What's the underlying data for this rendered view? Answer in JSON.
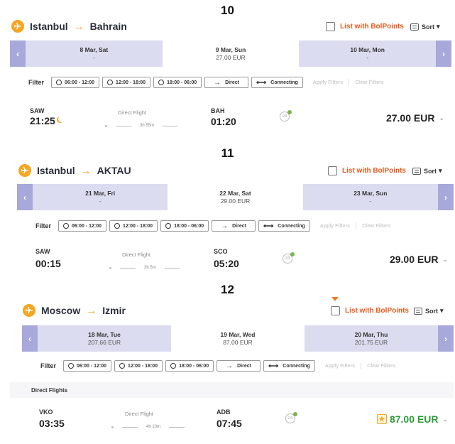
{
  "panels": [
    {
      "number": "10",
      "from": "Istanbul",
      "to": "Bahrain",
      "bolpoints_label": "List with BolPoints",
      "sort_label": "Sort",
      "dates": [
        {
          "date": "8 Mar, Sat",
          "price": "-"
        },
        {
          "date": "9 Mar, Sun",
          "price": "27.00 EUR"
        },
        {
          "date": "10 Mar, Mon",
          "price": "-"
        }
      ],
      "filter": {
        "label": "Filter",
        "t1": "06:00 - 12:00",
        "t2": "12:00 - 18:00",
        "t3": "18:00 - 06:00",
        "direct": "Direct",
        "connecting": "Connecting",
        "apply": "Apply Filters",
        "clear": "Clear Filters"
      },
      "flight": {
        "dep_code": "SAW",
        "dep_time": "21:25",
        "type": "Direct Flight",
        "duration": "3h 55m",
        "arr_code": "BAH",
        "arr_time": "01:20",
        "eco": "24",
        "price": "27.00 EUR"
      }
    },
    {
      "number": "11",
      "from": "Istanbul",
      "to": "AKTAU",
      "bolpoints_label": "List with BolPoints",
      "sort_label": "Sort",
      "dates": [
        {
          "date": "21 Mar, Fri",
          "price": "-"
        },
        {
          "date": "22 Mar, Sat",
          "price": "29.00 EUR"
        },
        {
          "date": "23 Mar, Sun",
          "price": "-"
        }
      ],
      "filter": {
        "label": "Filter",
        "t1": "06:00 - 12:00",
        "t2": "12:00 - 18:00",
        "t3": "18:00 - 06:00",
        "direct": "Direct",
        "connecting": "Connecting",
        "apply": "Apply Filters",
        "clear": "Clear Filters"
      },
      "flight": {
        "dep_code": "SAW",
        "dep_time": "00:15",
        "type": "Direct Flight",
        "duration": "3h 5m",
        "arr_code": "SCO",
        "arr_time": "05:20",
        "eco": "24",
        "price": "29.00 EUR"
      }
    },
    {
      "number": "12",
      "from": "Moscow",
      "to": "Izmir",
      "bolpoints_label": "List with BolPoints",
      "sort_label": "Sort",
      "dates": [
        {
          "date": "18 Mar, Tue",
          "price": "207.66 EUR"
        },
        {
          "date": "19 Mar, Wed",
          "price": "87.00 EUR"
        },
        {
          "date": "20 Mar, Thu",
          "price": "201.75 EUR"
        }
      ],
      "filter": {
        "label": "Filter",
        "t1": "06:00 - 12:00",
        "t2": "12:00 - 18:00",
        "t3": "18:00 - 06:00",
        "direct": "Direct",
        "connecting": "Connecting",
        "apply": "Apply Filters",
        "clear": "Clear Filters"
      },
      "section": "Direct Flights",
      "flight": {
        "dep_code": "VKO",
        "dep_time": "03:35",
        "type": "Direct Flight",
        "duration": "4h 10m",
        "arr_code": "ADB",
        "arr_time": "07:45",
        "eco": "24",
        "price": "87.00 EUR"
      }
    }
  ],
  "colors": {
    "accent": "#f5a623",
    "bolpoints": "#e85a1c",
    "date_strip": "#dcdcf0",
    "date_nav": "#a8a8db",
    "best_price": "#2e9b3a"
  }
}
